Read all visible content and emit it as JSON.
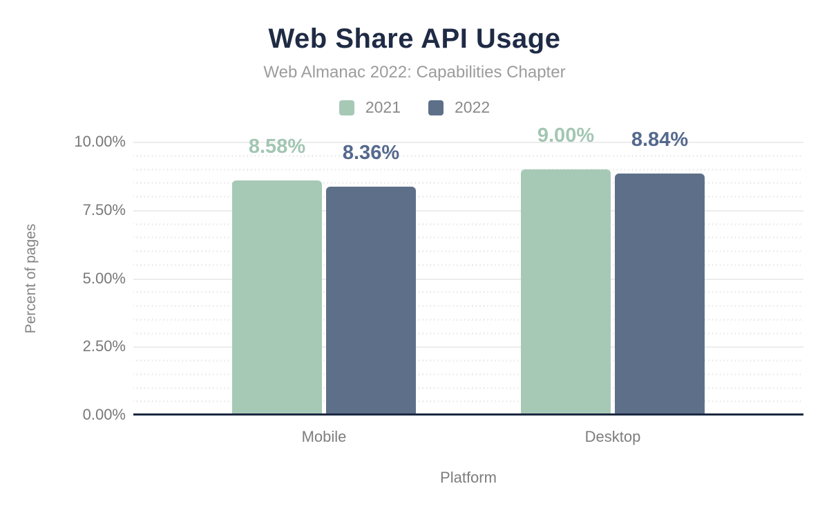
{
  "chart_data": {
    "type": "bar",
    "title": "Web Share API Usage",
    "subtitle": "Web Almanac 2022: Capabilities Chapter",
    "categories": [
      "Mobile",
      "Desktop"
    ],
    "series": [
      {
        "name": "2021",
        "values": [
          8.58,
          9.0
        ],
        "value_labels": [
          "8.58%",
          "9.00%"
        ],
        "color": "#a6c9b6",
        "label_color": "#a2c6b3"
      },
      {
        "name": "2022",
        "values": [
          8.36,
          8.84
        ],
        "value_labels": [
          "8.36%",
          "8.84%"
        ],
        "color": "#5e7089",
        "label_color": "#55698d"
      }
    ],
    "xlabel": "Platform",
    "ylabel": "Percent of pages",
    "ylim": [
      0,
      10
    ],
    "yticks": [
      {
        "value": 0.0,
        "label": "0.00%"
      },
      {
        "value": 2.5,
        "label": "2.50%"
      },
      {
        "value": 5.0,
        "label": "5.00%"
      },
      {
        "value": 7.5,
        "label": "7.50%"
      },
      {
        "value": 10.0,
        "label": "10.00%"
      }
    ],
    "minor_tick_step": 0.5,
    "grid": true,
    "legend_position": "top"
  },
  "colors": {
    "background": "#ffffff",
    "title_text": "#1f2b45",
    "subtitle_text": "#9c9c9c",
    "axis_text": "#7d7d7d",
    "legend_text": "#8a8a8a",
    "baseline": "#1b2840",
    "gridline_major": "#ececec",
    "gridline_minor": "#e3e3e3",
    "series_2021": "#a6c9b6",
    "series_2022": "#5e7089"
  }
}
